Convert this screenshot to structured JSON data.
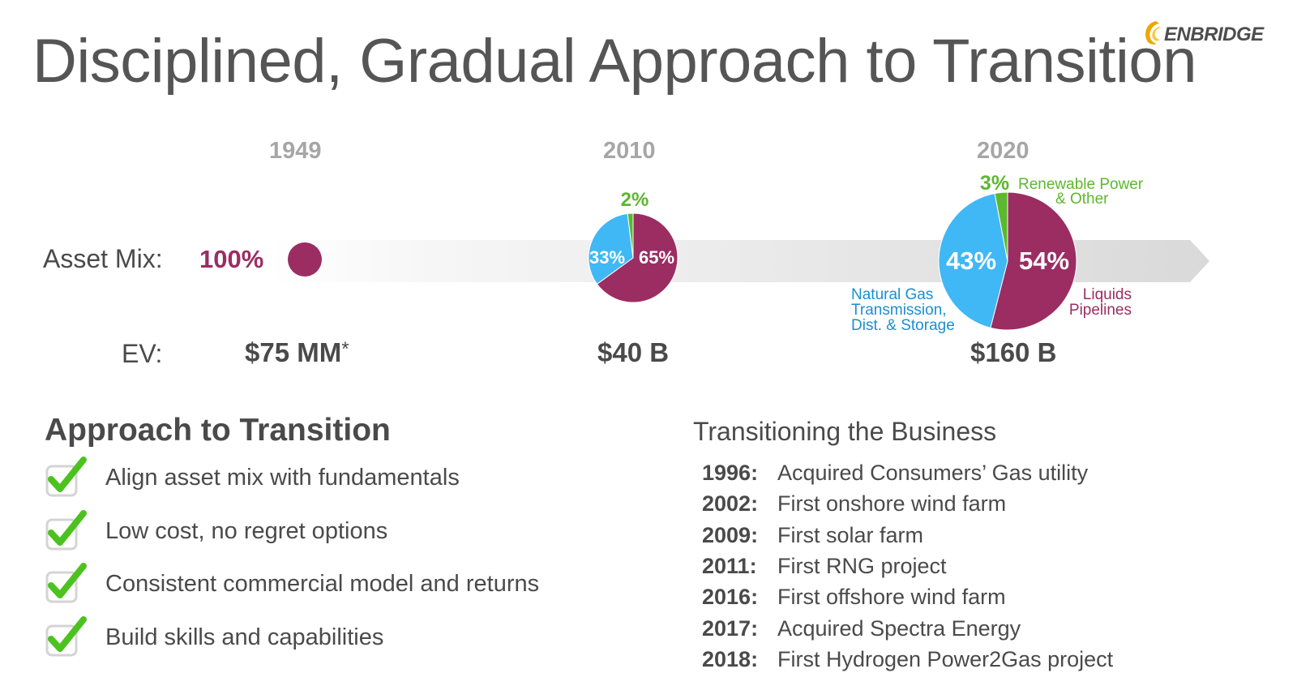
{
  "title": "Disciplined, Gradual Approach to Transition",
  "logo_text": "ENBRIDGE",
  "colors": {
    "liquids": "#9b2d63",
    "gas": "#3fb8f5",
    "renewable": "#5cb82e",
    "title": "#555555",
    "year": "#a6a6a6",
    "check": "#4cc21f"
  },
  "row_labels": {
    "asset_mix": "Asset Mix:",
    "ev": "EV:"
  },
  "chart_data": {
    "type": "pie",
    "years": [
      "1949",
      "2010",
      "2020"
    ],
    "ev": [
      "$75 MM",
      "$40 B",
      "$160 B"
    ],
    "ev_footnote": "*",
    "categories": [
      "Liquids Pipelines",
      "Natural Gas Transmission, Dist. & Storage",
      "Renewable Power & Other"
    ],
    "pies": [
      {
        "year": "1949",
        "slices": [
          {
            "category": "Liquids Pipelines",
            "value": 100,
            "label": "100%"
          }
        ]
      },
      {
        "year": "2010",
        "slices": [
          {
            "category": "Liquids Pipelines",
            "value": 65,
            "label": "65%"
          },
          {
            "category": "Natural Gas Transmission, Dist. & Storage",
            "value": 33,
            "label": "33%"
          },
          {
            "category": "Renewable Power & Other",
            "value": 2,
            "label": "2%"
          }
        ]
      },
      {
        "year": "2020",
        "slices": [
          {
            "category": "Liquids Pipelines",
            "value": 54,
            "label": "54%"
          },
          {
            "category": "Natural Gas Transmission, Dist. & Storage",
            "value": 43,
            "label": "43%"
          },
          {
            "category": "Renewable Power & Other",
            "value": 3,
            "label": "3%"
          }
        ]
      }
    ],
    "annotations": {
      "renewable_line1": "Renewable Power",
      "renewable_line2": "& Other",
      "gas_line1": "Natural Gas",
      "gas_line2": "Transmission,",
      "gas_line3": "Dist. & Storage",
      "liquids_line1": "Liquids",
      "liquids_line2": "Pipelines"
    }
  },
  "approach": {
    "heading": "Approach to Transition",
    "items": [
      "Align asset mix with fundamentals",
      "Low cost, no regret options",
      "Consistent commercial model and returns",
      "Build skills and capabilities"
    ]
  },
  "business": {
    "heading": "Transitioning the Business",
    "items": [
      {
        "year": "1996:",
        "event": "Acquired Consumers’ Gas utility"
      },
      {
        "year": "2002:",
        "event": "First onshore wind farm"
      },
      {
        "year": "2009:",
        "event": "First solar farm"
      },
      {
        "year": "2011:",
        "event": "First RNG project"
      },
      {
        "year": "2016:",
        "event": "First offshore wind farm"
      },
      {
        "year": "2017:",
        "event": "Acquired Spectra Energy"
      },
      {
        "year": "2018:",
        "event": "First Hydrogen Power2Gas project"
      }
    ]
  }
}
